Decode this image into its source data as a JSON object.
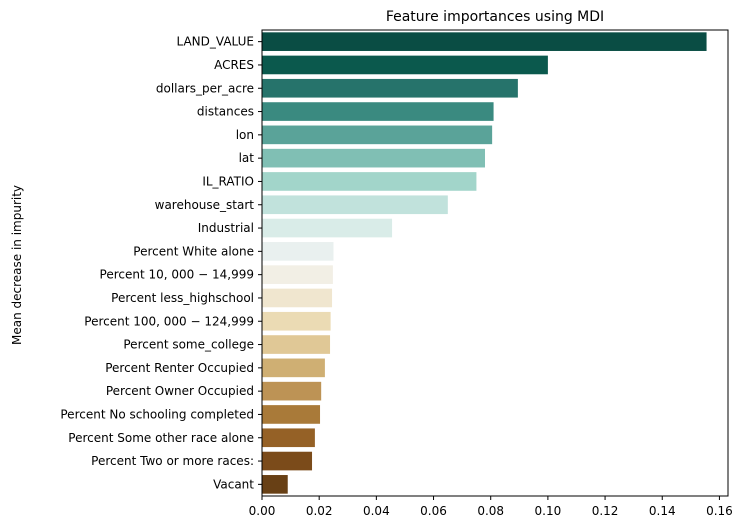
{
  "chart_data": {
    "type": "bar",
    "orientation": "horizontal",
    "title": "Feature importances using MDI",
    "xlabel": "",
    "ylabel": "Mean decrease in impurity",
    "xlim": [
      0,
      0.163
    ],
    "xticks": [
      "0.00",
      "0.02",
      "0.04",
      "0.06",
      "0.08",
      "0.10",
      "0.12",
      "0.14",
      "0.16"
    ],
    "categories": [
      "LAND_VALUE",
      "ACRES",
      "dollars_per_acre",
      "distances",
      "lon",
      "lat",
      "IL_RATIO",
      "warehouse_start",
      "Industrial",
      "Percent White alone",
      "Percent $10,000-$14,999",
      "Percent less_highschool",
      "Percent $100,000-$124,999",
      "Percent some_college",
      "Percent Renter Occupied",
      "Percent Owner Occupied",
      "Percent No schooling completed",
      "Percent Some other race alone",
      "Percent Two or more races:",
      "Vacant"
    ],
    "category_labels": [
      "LAND_VALUE",
      "ACRES",
      "dollars_per_acre",
      "distances",
      "lon",
      "lat",
      "IL_RATIO",
      "warehouse_start",
      "Industrial",
      "Percent White alone",
      "Percent 10, 000 − 14,999",
      "Percent less_highschool",
      "Percent 100, 000 − 124,999",
      "Percent some_college",
      "Percent Renter Occupied",
      "Percent Owner Occupied",
      "Percent No schooling completed",
      "Percent Some other race alone",
      "Percent Two or more races:",
      "Vacant"
    ],
    "values": [
      0.1555,
      0.1,
      0.0895,
      0.081,
      0.0805,
      0.078,
      0.075,
      0.065,
      0.0455,
      0.025,
      0.0248,
      0.0245,
      0.024,
      0.0238,
      0.022,
      0.0207,
      0.0203,
      0.0185,
      0.0175,
      0.009
    ],
    "colors": [
      "#0a4d44",
      "#0b594d",
      "#26736b",
      "#3a8a80",
      "#5aa399",
      "#80bfb4",
      "#a2d5ca",
      "#c1e2dc",
      "#d9ece8",
      "#e9f0ef",
      "#f2efe5",
      "#f0e6cf",
      "#ebdbb4",
      "#e0c896",
      "#cfaf73",
      "#bd9355",
      "#a97a39",
      "#956126",
      "#7b4b1a",
      "#684015"
    ],
    "grid": false,
    "legend": "none"
  }
}
